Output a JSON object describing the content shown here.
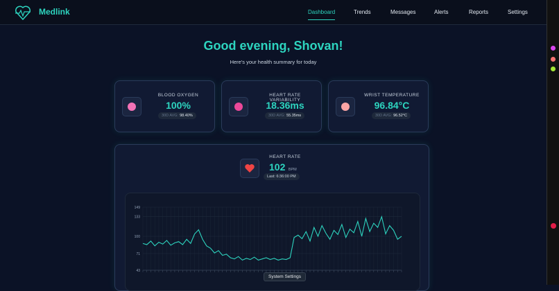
{
  "nav": {
    "brand": "Medlink",
    "items": [
      "Dashboard",
      "Trends",
      "Messages",
      "Alerts",
      "Reports",
      "Settings"
    ],
    "active": 0
  },
  "greeting": {
    "title": "Good evening, Shovan!",
    "subtitle": "Here's your health summary for today"
  },
  "metrics": [
    {
      "label": "BLOOD OXYGEN",
      "value": "100%",
      "avg_label": "30D AVG:",
      "avg": "98.40%"
    },
    {
      "label": "HEART RATE VARIABILITY",
      "value": "18.36ms",
      "avg_label": "30D AVG:",
      "avg": "55.35ms"
    },
    {
      "label": "WRIST TEMPERATURE",
      "value": "96.84°C",
      "avg_label": "30D AVG:",
      "avg": "96.52°C"
    }
  ],
  "heart_rate": {
    "label": "HEART RATE",
    "value": "102",
    "unit": "BPM",
    "last": "Last: 6:36:00 PM"
  },
  "chart_data": {
    "type": "line",
    "color": "#2dd4bf",
    "values": [
      88,
      86,
      92,
      84,
      90,
      87,
      93,
      85,
      89,
      91,
      86,
      95,
      88,
      104,
      111,
      95,
      84,
      80,
      72,
      76,
      68,
      70,
      64,
      62,
      66,
      60,
      63,
      61,
      65,
      60,
      62,
      64,
      61,
      63,
      60,
      62,
      61,
      64,
      98,
      102,
      96,
      108,
      92,
      115,
      100,
      118,
      105,
      95,
      110,
      103,
      120,
      98,
      112,
      106,
      125,
      100,
      130,
      108,
      122,
      115,
      133,
      104,
      118,
      110,
      95,
      100
    ],
    "ylim": [
      43,
      149
    ],
    "yticks": [
      43,
      71,
      100,
      133,
      149
    ],
    "grid": true
  },
  "tooltip": "System Settings"
}
